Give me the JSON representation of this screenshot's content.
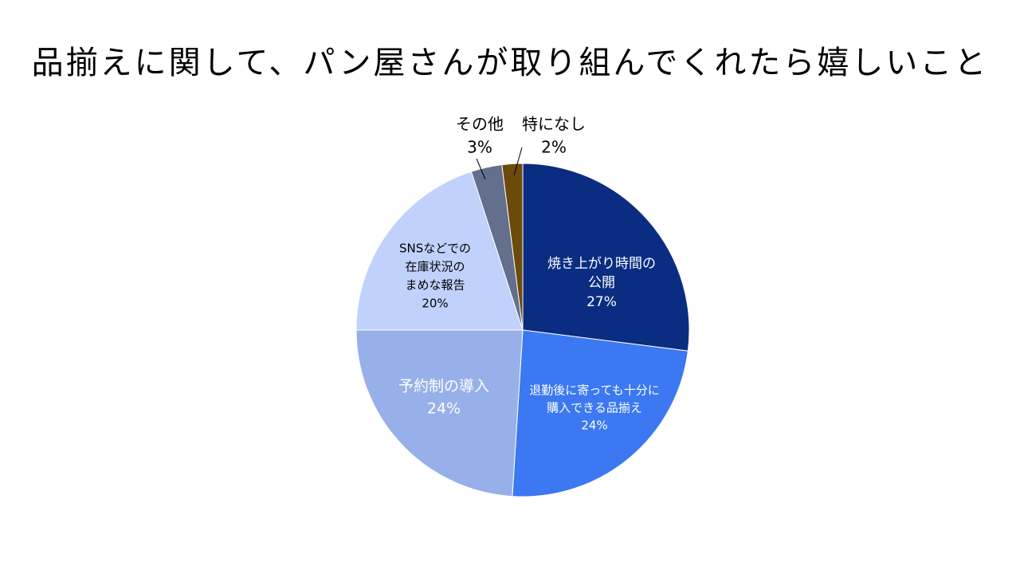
{
  "chart_data": {
    "type": "pie",
    "title": "品揃えに関して、パン屋さんが取り組んでくれたら嬉しいこと",
    "legend": "none",
    "slices": [
      {
        "label_lines": [
          "焼き上がり時間の",
          "公開"
        ],
        "value": 27,
        "value_label": "27%",
        "color": "#0a2d82"
      },
      {
        "label_lines": [
          "退勤後に寄っても十分に",
          "購入できる品揃え"
        ],
        "value": 24,
        "value_label": "24%",
        "color": "#3b78f2"
      },
      {
        "label_lines": [
          "予約制の導入"
        ],
        "value": 24,
        "value_label": "24%",
        "color": "#97b0ea"
      },
      {
        "label_lines": [
          "SNSなどでの",
          "在庫状況の",
          "まめな報告"
        ],
        "value": 20,
        "value_label": "20%",
        "color": "#c0d1fc"
      },
      {
        "label_lines": [
          "その他"
        ],
        "value": 3,
        "value_label": "3%",
        "color": "#636f8c"
      },
      {
        "label_lines": [
          "特になし"
        ],
        "value": 2,
        "value_label": "2%",
        "color": "#6b4a0b"
      }
    ]
  }
}
